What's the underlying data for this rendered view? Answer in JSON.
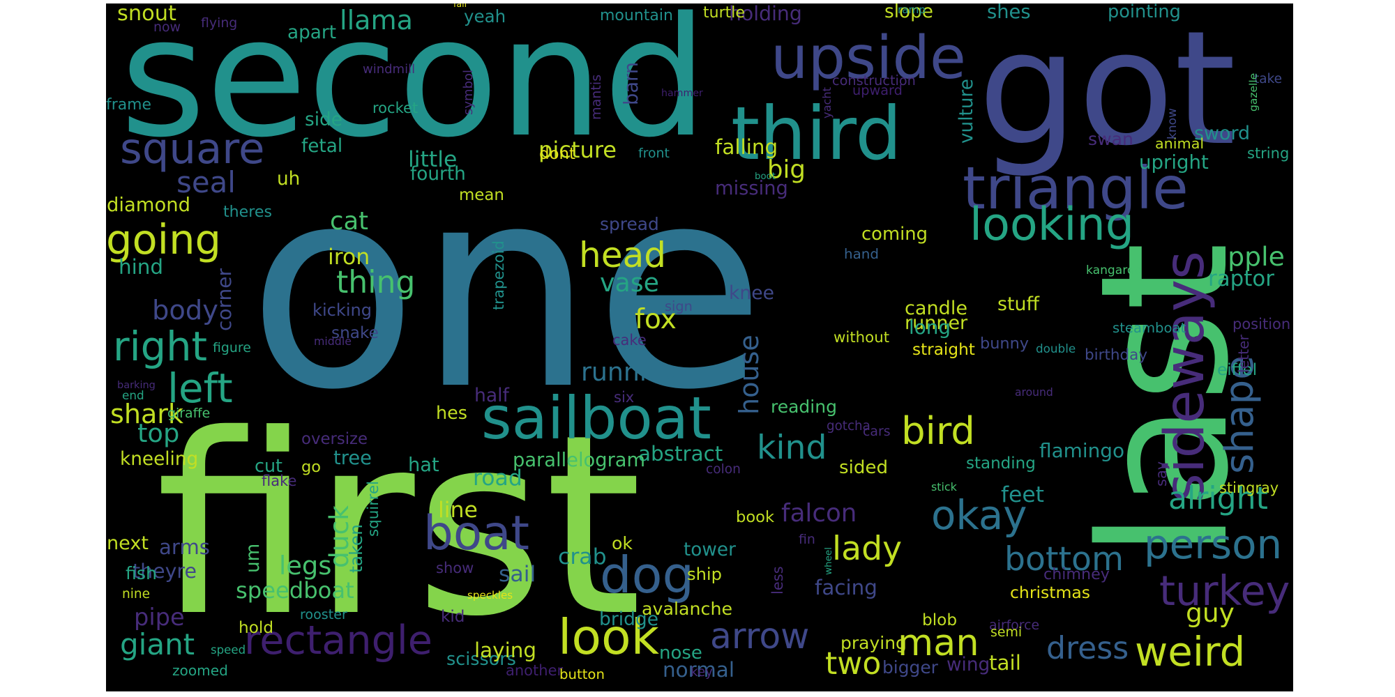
{
  "palette": {
    "purple_dark": "#3e1f6e",
    "purple": "#472c7a",
    "indigo": "#3f4889",
    "blue": "#35608d",
    "steel": "#2c728e",
    "teal": "#21918c",
    "sea": "#25a584",
    "green": "#47c16e",
    "lime": "#84d44b",
    "yellow": "#c2df23",
    "gold": "#e5e419"
  },
  "words": [
    {
      "text": "one",
      "color": "steel"
    },
    {
      "text": "first",
      "color": "lime"
    },
    {
      "text": "second",
      "color": "teal"
    },
    {
      "text": "got",
      "color": "indigo"
    },
    {
      "text": "last",
      "color": "green"
    },
    {
      "text": "third",
      "color": "teal"
    },
    {
      "text": "upside",
      "color": "indigo"
    },
    {
      "text": "triangle",
      "color": "indigo"
    },
    {
      "text": "square",
      "color": "indigo"
    },
    {
      "text": "sailboat",
      "color": "teal"
    },
    {
      "text": "looking",
      "color": "sea"
    },
    {
      "text": "sideways",
      "color": "purple"
    },
    {
      "text": "going",
      "color": "yellow"
    },
    {
      "text": "boat",
      "color": "indigo"
    },
    {
      "text": "dog",
      "color": "blue"
    },
    {
      "text": "look",
      "color": "yellow"
    },
    {
      "text": "person",
      "color": "steel"
    },
    {
      "text": "rectangle",
      "color": "purple_dark"
    },
    {
      "text": "arrow",
      "color": "indigo"
    },
    {
      "text": "head",
      "color": "yellow"
    },
    {
      "text": "bird",
      "color": "yellow"
    },
    {
      "text": "okay",
      "color": "steel"
    },
    {
      "text": "turkey",
      "color": "purple"
    },
    {
      "text": "man",
      "color": "yellow"
    },
    {
      "text": "weird",
      "color": "yellow"
    },
    {
      "text": "left",
      "color": "sea"
    },
    {
      "text": "right",
      "color": "sea"
    },
    {
      "text": "shape",
      "color": "blue"
    },
    {
      "text": "kind",
      "color": "teal"
    },
    {
      "text": "dress",
      "color": "blue"
    },
    {
      "text": "lady",
      "color": "yellow"
    },
    {
      "text": "two",
      "color": "yellow"
    },
    {
      "text": "bottom",
      "color": "steel"
    },
    {
      "text": "seal",
      "color": "indigo"
    },
    {
      "text": "thing",
      "color": "green"
    },
    {
      "text": "body",
      "color": "indigo"
    },
    {
      "text": "alright",
      "color": "sea"
    },
    {
      "text": "giant",
      "color": "sea"
    },
    {
      "text": "house",
      "color": "blue"
    },
    {
      "text": "duck",
      "color": "green"
    },
    {
      "text": "fox",
      "color": "yellow"
    },
    {
      "text": "vase",
      "color": "sea"
    },
    {
      "text": "running",
      "color": "steel"
    },
    {
      "text": "speedboat",
      "color": "green"
    },
    {
      "text": "legs",
      "color": "green"
    },
    {
      "text": "feet",
      "color": "teal"
    },
    {
      "text": "guy",
      "color": "yellow"
    },
    {
      "text": "shark",
      "color": "yellow"
    },
    {
      "text": "top",
      "color": "sea"
    },
    {
      "text": "flamingo",
      "color": "teal"
    },
    {
      "text": "apple",
      "color": "green"
    },
    {
      "text": "cat",
      "color": "green"
    },
    {
      "text": "llama",
      "color": "sea"
    },
    {
      "text": "falcon",
      "color": "purple"
    },
    {
      "text": "big",
      "color": "yellow"
    },
    {
      "text": "knee",
      "color": "indigo"
    },
    {
      "text": "runner",
      "color": "yellow"
    },
    {
      "text": "coming",
      "color": "yellow"
    },
    {
      "text": "picture",
      "color": "yellow"
    },
    {
      "text": "arms",
      "color": "indigo"
    },
    {
      "text": "raptor",
      "color": "sea"
    },
    {
      "text": "diamond",
      "color": "yellow"
    },
    {
      "text": "pipe",
      "color": "purple"
    },
    {
      "text": "candle",
      "color": "yellow"
    },
    {
      "text": "long",
      "color": "sea"
    },
    {
      "text": "road",
      "color": "sea"
    },
    {
      "text": "abstract",
      "color": "sea"
    },
    {
      "text": "bunny",
      "color": "indigo"
    },
    {
      "text": "iron",
      "color": "yellow"
    },
    {
      "text": "snake",
      "color": "indigo"
    },
    {
      "text": "theyre",
      "color": "indigo"
    },
    {
      "text": "little",
      "color": "sea"
    },
    {
      "text": "mean",
      "color": "yellow"
    },
    {
      "text": "missing",
      "color": "purple"
    },
    {
      "text": "holding",
      "color": "purple"
    },
    {
      "text": "swan",
      "color": "purple"
    },
    {
      "text": "sword",
      "color": "teal"
    },
    {
      "text": "next",
      "color": "yellow"
    },
    {
      "text": "snout",
      "color": "yellow"
    },
    {
      "text": "kicking",
      "color": "indigo"
    },
    {
      "text": "falling",
      "color": "yellow"
    },
    {
      "text": "upright",
      "color": "sea"
    },
    {
      "text": "stuff",
      "color": "yellow"
    },
    {
      "text": "sail",
      "color": "blue"
    },
    {
      "text": "scissors",
      "color": "teal"
    },
    {
      "text": "zoomed",
      "color": "sea"
    },
    {
      "text": "normal",
      "color": "blue"
    },
    {
      "text": "laying",
      "color": "yellow"
    },
    {
      "text": "line",
      "color": "yellow"
    },
    {
      "text": "taken",
      "color": "sea"
    },
    {
      "text": "crab",
      "color": "teal"
    },
    {
      "text": "bridge",
      "color": "teal"
    },
    {
      "text": "facing",
      "color": "indigo"
    },
    {
      "text": "praying",
      "color": "yellow"
    },
    {
      "text": "wing",
      "color": "purple"
    },
    {
      "text": "tail",
      "color": "yellow"
    },
    {
      "text": "bigger",
      "color": "indigo"
    },
    {
      "text": "christmas",
      "color": "gold"
    },
    {
      "text": "chimney",
      "color": "purple"
    },
    {
      "text": "standing",
      "color": "sea"
    },
    {
      "text": "parallelogram",
      "color": "green"
    },
    {
      "text": "reading",
      "color": "green"
    },
    {
      "text": "sided",
      "color": "yellow"
    },
    {
      "text": "fourth",
      "color": "sea"
    },
    {
      "text": "barn",
      "color": "indigo"
    },
    {
      "text": "cut",
      "color": "sea"
    },
    {
      "text": "tree",
      "color": "teal"
    },
    {
      "text": "hat",
      "color": "sea"
    },
    {
      "text": "hind",
      "color": "sea"
    },
    {
      "text": "kneeling",
      "color": "yellow"
    },
    {
      "text": "hold",
      "color": "yellow"
    },
    {
      "text": "um",
      "color": "green"
    },
    {
      "text": "corner",
      "color": "indigo"
    },
    {
      "text": "frame",
      "color": "teal"
    },
    {
      "text": "apart",
      "color": "sea"
    },
    {
      "text": "yeah",
      "color": "teal"
    },
    {
      "text": "mountain",
      "color": "teal"
    },
    {
      "text": "slope",
      "color": "yellow"
    },
    {
      "text": "shes",
      "color": "teal"
    },
    {
      "text": "pointing",
      "color": "teal"
    },
    {
      "text": "fetal",
      "color": "sea"
    },
    {
      "text": "side",
      "color": "sea"
    },
    {
      "text": "rocket",
      "color": "sea"
    },
    {
      "text": "uh",
      "color": "yellow"
    },
    {
      "text": "theres",
      "color": "teal"
    },
    {
      "text": "half",
      "color": "purple"
    },
    {
      "text": "hes",
      "color": "yellow"
    },
    {
      "text": "oversize",
      "color": "purple"
    },
    {
      "text": "go",
      "color": "yellow"
    },
    {
      "text": "book",
      "color": "yellow"
    },
    {
      "text": "ok",
      "color": "yellow"
    },
    {
      "text": "tower",
      "color": "teal"
    },
    {
      "text": "ship",
      "color": "yellow"
    },
    {
      "text": "nose",
      "color": "sea"
    },
    {
      "text": "avalanche",
      "color": "yellow"
    },
    {
      "text": "spread",
      "color": "indigo"
    },
    {
      "text": "vulture",
      "color": "teal"
    },
    {
      "text": "string",
      "color": "sea"
    },
    {
      "text": "animal",
      "color": "yellow"
    },
    {
      "text": "stingray",
      "color": "yellow"
    },
    {
      "text": "birthday",
      "color": "indigo"
    },
    {
      "text": "eiffel",
      "color": "sea"
    },
    {
      "text": "steamboat",
      "color": "teal"
    },
    {
      "text": "without",
      "color": "yellow"
    },
    {
      "text": "straight",
      "color": "gold"
    },
    {
      "text": "construction",
      "color": "purple"
    },
    {
      "text": "upward",
      "color": "purple_dark"
    },
    {
      "text": "ramp",
      "color": "teal"
    },
    {
      "text": "turtle",
      "color": "yellow"
    },
    {
      "text": "windmill",
      "color": "purple"
    },
    {
      "text": "symbol",
      "color": "purple"
    },
    {
      "text": "mantis",
      "color": "purple"
    },
    {
      "text": "hammer",
      "color": "purple_dark"
    },
    {
      "text": "boot",
      "color": "sea"
    },
    {
      "text": "yacht",
      "color": "purple"
    },
    {
      "text": "know",
      "color": "indigo"
    },
    {
      "text": "take",
      "color": "indigo"
    },
    {
      "text": "gazelle",
      "color": "green"
    },
    {
      "text": "kangaroo",
      "color": "green"
    },
    {
      "text": "position",
      "color": "purple"
    },
    {
      "text": "letter",
      "color": "purple"
    },
    {
      "text": "double",
      "color": "teal"
    },
    {
      "text": "around",
      "color": "purple"
    },
    {
      "text": "say",
      "color": "purple"
    },
    {
      "text": "colon",
      "color": "purple"
    },
    {
      "text": "gotcha",
      "color": "purple"
    },
    {
      "text": "cars",
      "color": "purple"
    },
    {
      "text": "stick",
      "color": "green"
    },
    {
      "text": "fin",
      "color": "purple"
    },
    {
      "text": "less",
      "color": "purple"
    },
    {
      "text": "wheel",
      "color": "sea"
    },
    {
      "text": "airforce",
      "color": "purple"
    },
    {
      "text": "semi",
      "color": "yellow"
    },
    {
      "text": "blob",
      "color": "yellow"
    },
    {
      "text": "another",
      "color": "purple_dark"
    },
    {
      "text": "key",
      "color": "purple"
    },
    {
      "text": "button",
      "color": "gold"
    },
    {
      "text": "speckles",
      "color": "gold"
    },
    {
      "text": "kid",
      "color": "purple"
    },
    {
      "text": "show",
      "color": "purple"
    },
    {
      "text": "rooster",
      "color": "teal"
    },
    {
      "text": "nine",
      "color": "yellow"
    },
    {
      "text": "speed",
      "color": "sea"
    },
    {
      "text": "squirrel",
      "color": "sea"
    },
    {
      "text": "fish",
      "color": "sea"
    },
    {
      "text": "flake",
      "color": "purple"
    },
    {
      "text": "barking",
      "color": "purple"
    },
    {
      "text": "end",
      "color": "sea"
    },
    {
      "text": "giraffe",
      "color": "green"
    },
    {
      "text": "figure",
      "color": "sea"
    },
    {
      "text": "dont",
      "color": "gold"
    },
    {
      "text": "front",
      "color": "teal"
    },
    {
      "text": "flying",
      "color": "purple"
    },
    {
      "text": "now",
      "color": "purple"
    },
    {
      "text": "trapezoid",
      "color": "teal"
    },
    {
      "text": "middle",
      "color": "purple"
    },
    {
      "text": "hand",
      "color": "blue"
    },
    {
      "text": "sign",
      "color": "indigo"
    },
    {
      "text": "cake",
      "color": "purple"
    },
    {
      "text": "six",
      "color": "purple"
    },
    {
      "text": "fall",
      "color": "gold"
    }
  ]
}
